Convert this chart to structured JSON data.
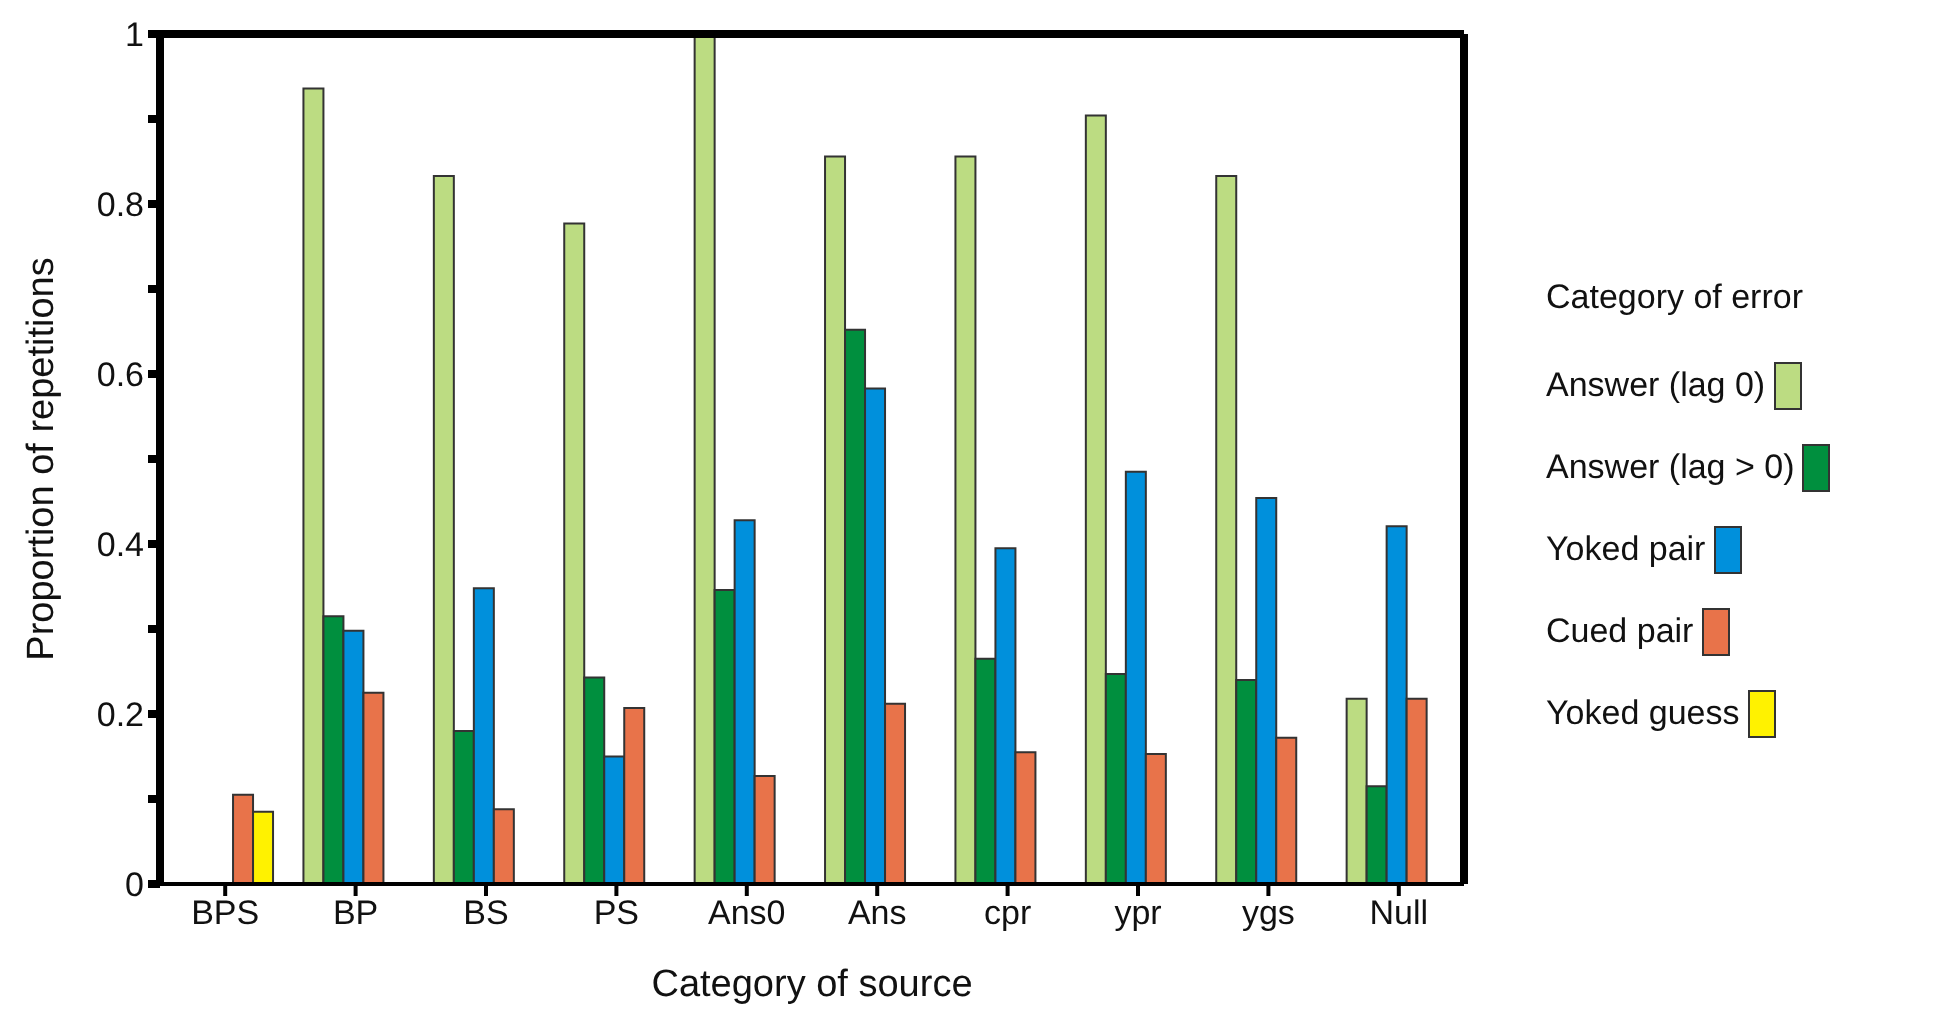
{
  "chart_data": {
    "type": "bar",
    "xlabel": "Category of source",
    "ylabel": "Proportion of repetitions",
    "legend_title": "Category of error",
    "categories": [
      "BPS",
      "BP",
      "BS",
      "PS",
      "Ans0",
      "Ans",
      "cpr",
      "ypr",
      "ygs",
      "Null"
    ],
    "series": [
      {
        "name": "Answer (lag 0)",
        "color": "#bcdc82",
        "values": [
          null,
          0.936,
          0.833,
          0.777,
          1.0,
          0.856,
          0.856,
          0.904,
          0.833,
          0.218
        ]
      },
      {
        "name": "Answer (lag > 0)",
        "color": "#008f3e",
        "values": [
          null,
          0.315,
          0.18,
          0.243,
          0.346,
          0.652,
          0.265,
          0.247,
          0.24,
          0.115
        ]
      },
      {
        "name": "Yoked pair",
        "color": "#0090dc",
        "values": [
          null,
          0.298,
          0.348,
          0.15,
          0.428,
          0.583,
          0.395,
          0.485,
          0.454,
          0.421
        ]
      },
      {
        "name": "Cued pair",
        "color": "#e8734a",
        "values": [
          0.105,
          0.225,
          0.088,
          0.207,
          0.127,
          0.212,
          0.155,
          0.153,
          0.172,
          0.218
        ]
      },
      {
        "name": "Yoked guess",
        "color": "#fff200",
        "values": [
          0.085,
          null,
          null,
          null,
          null,
          null,
          null,
          null,
          null,
          null
        ]
      }
    ],
    "ylim": [
      0,
      1
    ],
    "yticks": [
      0,
      {
        "value": 0.1,
        "label": null
      },
      {
        "value": 0.2,
        "label": "0.2"
      },
      {
        "value": 0.3,
        "label": null
      },
      {
        "value": 0.4,
        "label": "0.4"
      },
      {
        "value": 0.5,
        "label": null
      },
      {
        "value": 0.6,
        "label": "0.6"
      },
      {
        "value": 0.7,
        "label": null
      },
      {
        "value": 0.8,
        "label": "0.8"
      },
      {
        "value": 0.9,
        "label": null
      },
      1
    ],
    "grid": false,
    "legend": "right"
  }
}
